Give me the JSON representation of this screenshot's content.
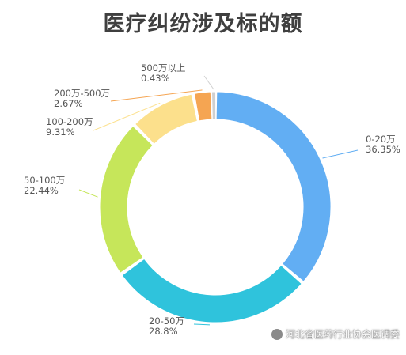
{
  "chart_data": {
    "type": "pie",
    "style": "donut",
    "title": "医疗纠纷涉及标的额",
    "categories": [
      "0-20万",
      "20-50万",
      "50-100万",
      "100-200万",
      "200万-500万",
      "500万以上"
    ],
    "values": [
      36.35,
      28.8,
      22.44,
      9.31,
      2.67,
      0.43
    ],
    "value_labels": [
      "36.35%",
      "28.8%",
      "22.44%",
      "9.31%",
      "2.67%",
      "0.43%"
    ],
    "colors": [
      "#62aef3",
      "#2fc3dc",
      "#c6e65a",
      "#fce08c",
      "#f5a552",
      "#d0d0d0"
    ],
    "legend": "none"
  },
  "watermark": {
    "text": "河北省医药行业协会医调委",
    "icon": "wechat-icon"
  }
}
